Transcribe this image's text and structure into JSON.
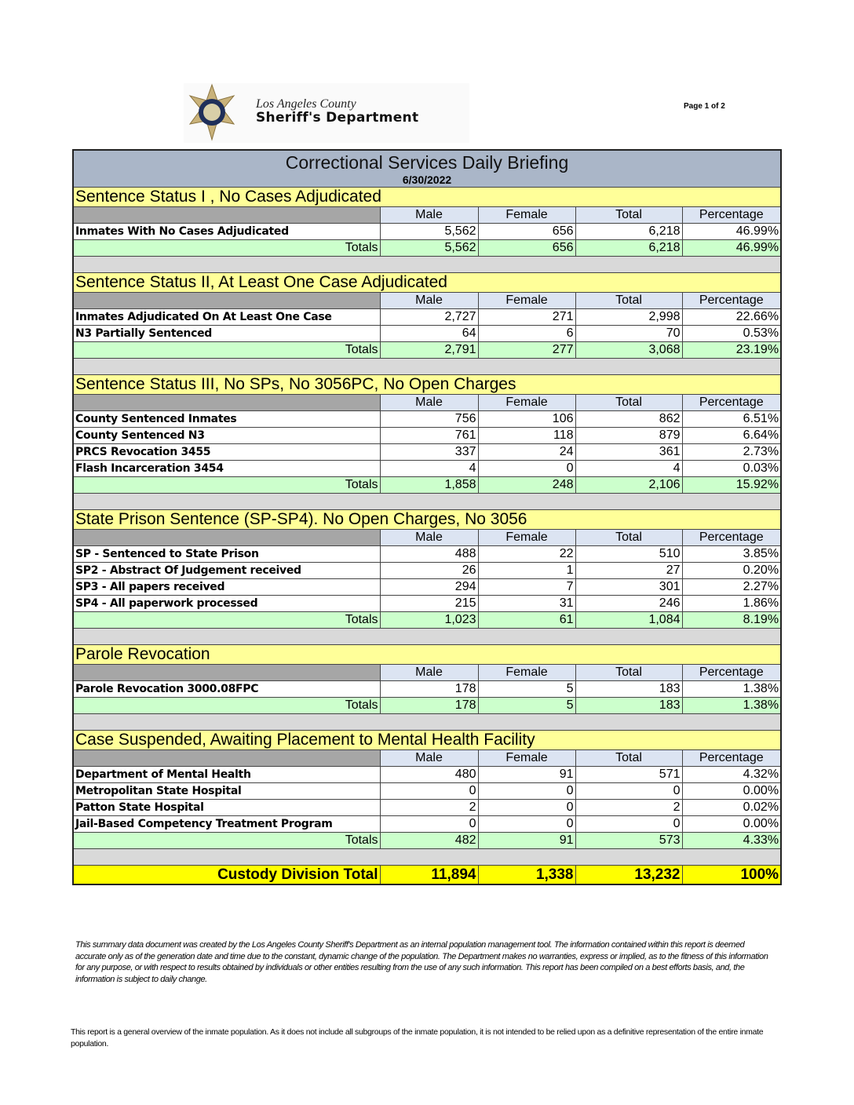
{
  "header": {
    "logo_line1": "Los Angeles County",
    "logo_line2": "Sheriff's Department",
    "page": "Page 1 of 2"
  },
  "report": {
    "title": "Correctional Services Daily Briefing",
    "date": "6/30/2022"
  },
  "columns": [
    "Male",
    "Female",
    "Total",
    "Percentage"
  ],
  "totals_label": "Totals",
  "sections": [
    {
      "title": "Sentence Status I , No Cases Adjudicated",
      "rows": [
        [
          "Inmates With No Cases Adjudicated",
          "5,562",
          "656",
          "6,218",
          "46.99%"
        ]
      ],
      "totals": [
        "5,562",
        "656",
        "6,218",
        "46.99%"
      ]
    },
    {
      "title": "Sentence Status II, At Least One Case Adjudicated",
      "rows": [
        [
          "Inmates Adjudicated On At Least One Case",
          "2,727",
          "271",
          "2,998",
          "22.66%"
        ],
        [
          "N3 Partially Sentenced",
          "64",
          "6",
          "70",
          "0.53%"
        ]
      ],
      "totals": [
        "2,791",
        "277",
        "3,068",
        "23.19%"
      ]
    },
    {
      "title": "Sentence Status III, No SPs, No 3056PC, No Open Charges",
      "rows": [
        [
          "County Sentenced Inmates",
          "756",
          "106",
          "862",
          "6.51%"
        ],
        [
          "County Sentenced N3",
          "761",
          "118",
          "879",
          "6.64%"
        ],
        [
          "PRCS Revocation 3455",
          "337",
          "24",
          "361",
          "2.73%"
        ],
        [
          "Flash Incarceration 3454",
          "4",
          "0",
          "4",
          "0.03%"
        ]
      ],
      "totals": [
        "1,858",
        "248",
        "2,106",
        "15.92%"
      ]
    },
    {
      "title": "State Prison Sentence (SP-SP4). No Open Charges, No 3056",
      "rows": [
        [
          "SP - Sentenced to State Prison",
          "488",
          "22",
          "510",
          "3.85%"
        ],
        [
          "SP2 - Abstract Of Judgement received",
          "26",
          "1",
          "27",
          "0.20%"
        ],
        [
          "SP3 - All papers received",
          "294",
          "7",
          "301",
          "2.27%"
        ],
        [
          "SP4 - All paperwork processed",
          "215",
          "31",
          "246",
          "1.86%"
        ]
      ],
      "totals": [
        "1,023",
        "61",
        "1,084",
        "8.19%"
      ]
    },
    {
      "title": "Parole Revocation",
      "rows": [
        [
          "Parole Revocation 3000.08FPC",
          "178",
          "5",
          "183",
          "1.38%"
        ]
      ],
      "totals": [
        "178",
        "5",
        "183",
        "1.38%"
      ]
    },
    {
      "title": "Case Suspended, Awaiting Placement to Mental Health Facility",
      "rows": [
        [
          "Department of Mental Health",
          "480",
          "91",
          "571",
          "4.32%"
        ],
        [
          "Metropolitan State Hospital",
          "0",
          "0",
          "0",
          "0.00%"
        ],
        [
          "Patton State Hospital",
          "2",
          "0",
          "2",
          "0.02%"
        ],
        [
          "Jail-Based Competency Treatment Program",
          "0",
          "0",
          "0",
          "0.00%"
        ]
      ],
      "totals": [
        "482",
        "91",
        "573",
        "4.33%"
      ]
    }
  ],
  "custody_total": {
    "label": "Custody Division Total",
    "values": [
      "11,894",
      "1,338",
      "13,232",
      "100%"
    ]
  },
  "disclaimer": "This summary data document was created by the Los Angeles County Sheriff's Department as an internal population management tool.  The information contained within this report is deemed accurate only as of the generation date and time due to the constant, dynamic change of the population.  The Department makes no warranties, express or implied, as to the fitness of this information for any purpose, or with respect to results obtained by individuals or other entities resulting from the use of any such information.  This report has been compiled on a best efforts basis, and, the information is subject to daily change.",
  "note": "This report is a general overview of the inmate population.  As it does not include all subgroups of the inmate population, it is not intended to be relied upon as a definitive representation of the entire inmate population.",
  "colors": {
    "title_band": "#aab6c8",
    "section_header": "#ffff99",
    "column_header": "#dce4f2",
    "totals": "#ccffcc",
    "custody_total": "#ffff00"
  }
}
